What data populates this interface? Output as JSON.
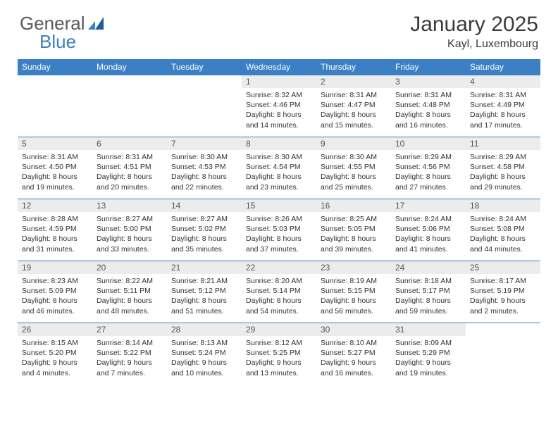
{
  "logo": {
    "text1": "General",
    "text2": "Blue"
  },
  "title": "January 2025",
  "location": "Kayl, Luxembourg",
  "calendar": {
    "type": "calendar-table",
    "header_bg": "#3b7fc4",
    "header_text_color": "#ffffff",
    "daynum_bg": "#ececec",
    "border_color": "#3b7fc4",
    "text_color": "#333333",
    "font_size_header": 12,
    "font_size_daynum": 12,
    "font_size_body": 10.5,
    "columns": [
      "Sunday",
      "Monday",
      "Tuesday",
      "Wednesday",
      "Thursday",
      "Friday",
      "Saturday"
    ],
    "weeks": [
      [
        null,
        null,
        null,
        {
          "n": "1",
          "sunrise": "8:32 AM",
          "sunset": "4:46 PM",
          "dl": "8 hours and 14 minutes."
        },
        {
          "n": "2",
          "sunrise": "8:31 AM",
          "sunset": "4:47 PM",
          "dl": "8 hours and 15 minutes."
        },
        {
          "n": "3",
          "sunrise": "8:31 AM",
          "sunset": "4:48 PM",
          "dl": "8 hours and 16 minutes."
        },
        {
          "n": "4",
          "sunrise": "8:31 AM",
          "sunset": "4:49 PM",
          "dl": "8 hours and 17 minutes."
        }
      ],
      [
        {
          "n": "5",
          "sunrise": "8:31 AM",
          "sunset": "4:50 PM",
          "dl": "8 hours and 19 minutes."
        },
        {
          "n": "6",
          "sunrise": "8:31 AM",
          "sunset": "4:51 PM",
          "dl": "8 hours and 20 minutes."
        },
        {
          "n": "7",
          "sunrise": "8:30 AM",
          "sunset": "4:53 PM",
          "dl": "8 hours and 22 minutes."
        },
        {
          "n": "8",
          "sunrise": "8:30 AM",
          "sunset": "4:54 PM",
          "dl": "8 hours and 23 minutes."
        },
        {
          "n": "9",
          "sunrise": "8:30 AM",
          "sunset": "4:55 PM",
          "dl": "8 hours and 25 minutes."
        },
        {
          "n": "10",
          "sunrise": "8:29 AM",
          "sunset": "4:56 PM",
          "dl": "8 hours and 27 minutes."
        },
        {
          "n": "11",
          "sunrise": "8:29 AM",
          "sunset": "4:58 PM",
          "dl": "8 hours and 29 minutes."
        }
      ],
      [
        {
          "n": "12",
          "sunrise": "8:28 AM",
          "sunset": "4:59 PM",
          "dl": "8 hours and 31 minutes."
        },
        {
          "n": "13",
          "sunrise": "8:27 AM",
          "sunset": "5:00 PM",
          "dl": "8 hours and 33 minutes."
        },
        {
          "n": "14",
          "sunrise": "8:27 AM",
          "sunset": "5:02 PM",
          "dl": "8 hours and 35 minutes."
        },
        {
          "n": "15",
          "sunrise": "8:26 AM",
          "sunset": "5:03 PM",
          "dl": "8 hours and 37 minutes."
        },
        {
          "n": "16",
          "sunrise": "8:25 AM",
          "sunset": "5:05 PM",
          "dl": "8 hours and 39 minutes."
        },
        {
          "n": "17",
          "sunrise": "8:24 AM",
          "sunset": "5:06 PM",
          "dl": "8 hours and 41 minutes."
        },
        {
          "n": "18",
          "sunrise": "8:24 AM",
          "sunset": "5:08 PM",
          "dl": "8 hours and 44 minutes."
        }
      ],
      [
        {
          "n": "19",
          "sunrise": "8:23 AM",
          "sunset": "5:09 PM",
          "dl": "8 hours and 46 minutes."
        },
        {
          "n": "20",
          "sunrise": "8:22 AM",
          "sunset": "5:11 PM",
          "dl": "8 hours and 48 minutes."
        },
        {
          "n": "21",
          "sunrise": "8:21 AM",
          "sunset": "5:12 PM",
          "dl": "8 hours and 51 minutes."
        },
        {
          "n": "22",
          "sunrise": "8:20 AM",
          "sunset": "5:14 PM",
          "dl": "8 hours and 54 minutes."
        },
        {
          "n": "23",
          "sunrise": "8:19 AM",
          "sunset": "5:15 PM",
          "dl": "8 hours and 56 minutes."
        },
        {
          "n": "24",
          "sunrise": "8:18 AM",
          "sunset": "5:17 PM",
          "dl": "8 hours and 59 minutes."
        },
        {
          "n": "25",
          "sunrise": "8:17 AM",
          "sunset": "5:19 PM",
          "dl": "9 hours and 2 minutes."
        }
      ],
      [
        {
          "n": "26",
          "sunrise": "8:15 AM",
          "sunset": "5:20 PM",
          "dl": "9 hours and 4 minutes."
        },
        {
          "n": "27",
          "sunrise": "8:14 AM",
          "sunset": "5:22 PM",
          "dl": "9 hours and 7 minutes."
        },
        {
          "n": "28",
          "sunrise": "8:13 AM",
          "sunset": "5:24 PM",
          "dl": "9 hours and 10 minutes."
        },
        {
          "n": "29",
          "sunrise": "8:12 AM",
          "sunset": "5:25 PM",
          "dl": "9 hours and 13 minutes."
        },
        {
          "n": "30",
          "sunrise": "8:10 AM",
          "sunset": "5:27 PM",
          "dl": "9 hours and 16 minutes."
        },
        {
          "n": "31",
          "sunrise": "8:09 AM",
          "sunset": "5:29 PM",
          "dl": "9 hours and 19 minutes."
        },
        null
      ]
    ],
    "labels": {
      "sunrise": "Sunrise:",
      "sunset": "Sunset:",
      "daylight": "Daylight:"
    }
  }
}
